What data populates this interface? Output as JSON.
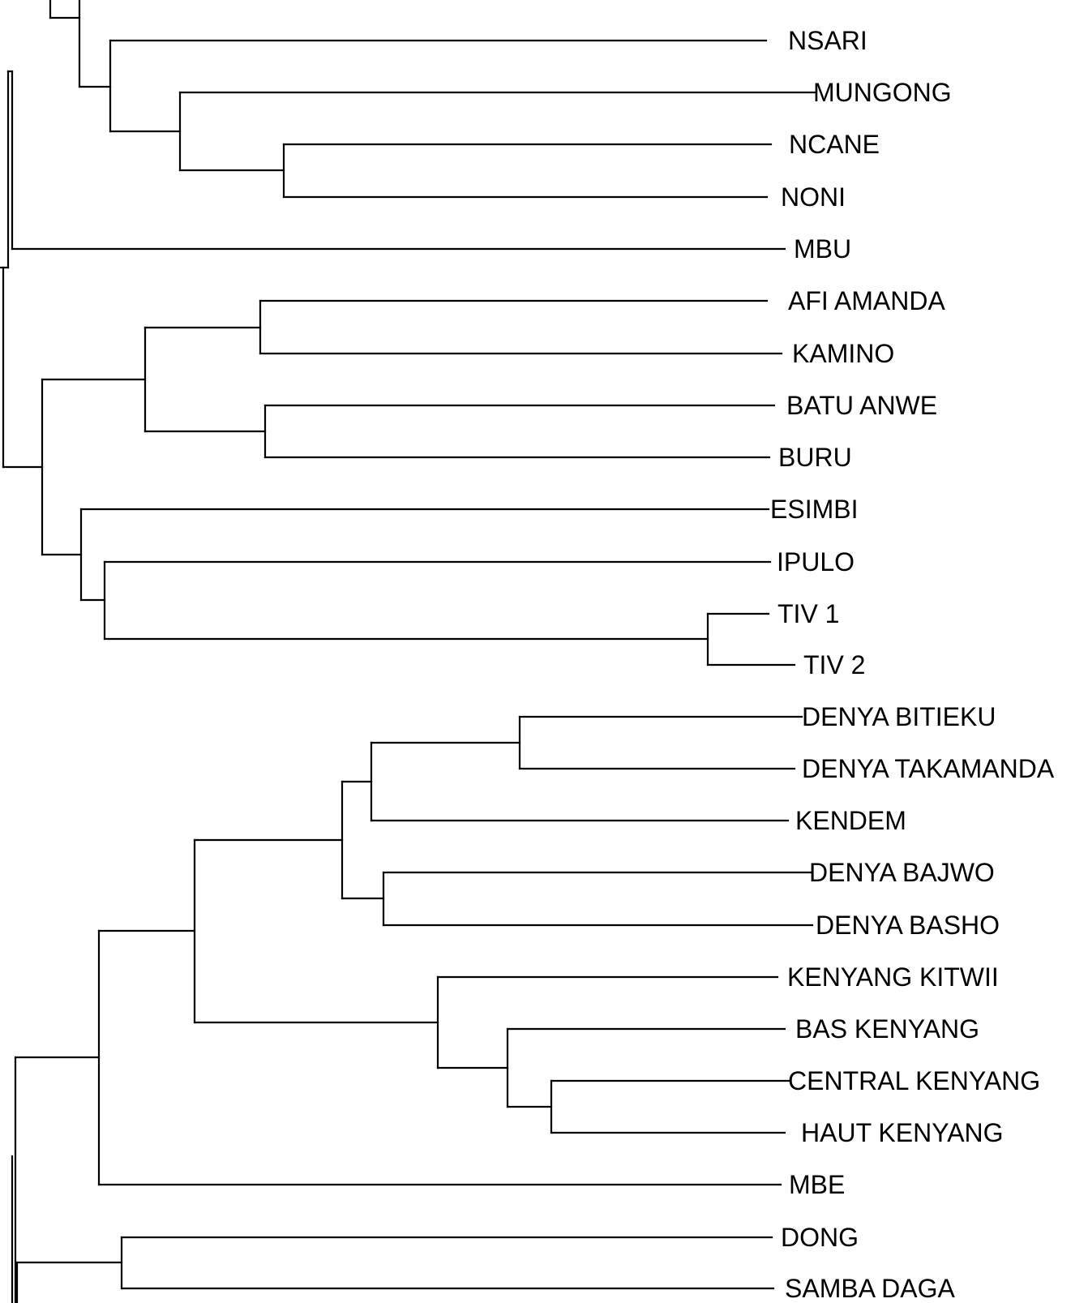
{
  "leaves": [
    {
      "label": "NSARI"
    },
    {
      "label": "MUNGONG"
    },
    {
      "label": "NCANE"
    },
    {
      "label": "NONI"
    },
    {
      "label": "MBU"
    },
    {
      "label": "AFI AMANDA"
    },
    {
      "label": "KAMINO"
    },
    {
      "label": "BATU ANWE"
    },
    {
      "label": "BURU"
    },
    {
      "label": "ESIMBI"
    },
    {
      "label": "IPULO"
    },
    {
      "label": "TIV 1"
    },
    {
      "label": "TIV 2"
    },
    {
      "label": "DENYA BITIEKU"
    },
    {
      "label": "DENYA TAKAMANDA"
    },
    {
      "label": "KENDEM"
    },
    {
      "label": "DENYA BAJWO"
    },
    {
      "label": "DENYA BASHO"
    },
    {
      "label": "KENYANG KITWII"
    },
    {
      "label": "BAS KENYANG"
    },
    {
      "label": "CENTRAL KENYANG"
    },
    {
      "label": "HAUT KENYANG"
    },
    {
      "label": "MBE"
    },
    {
      "label": "DONG"
    },
    {
      "label": "SAMBA DAGA"
    }
  ],
  "colors": {
    "line": "#000000",
    "background": "#ffffff"
  }
}
